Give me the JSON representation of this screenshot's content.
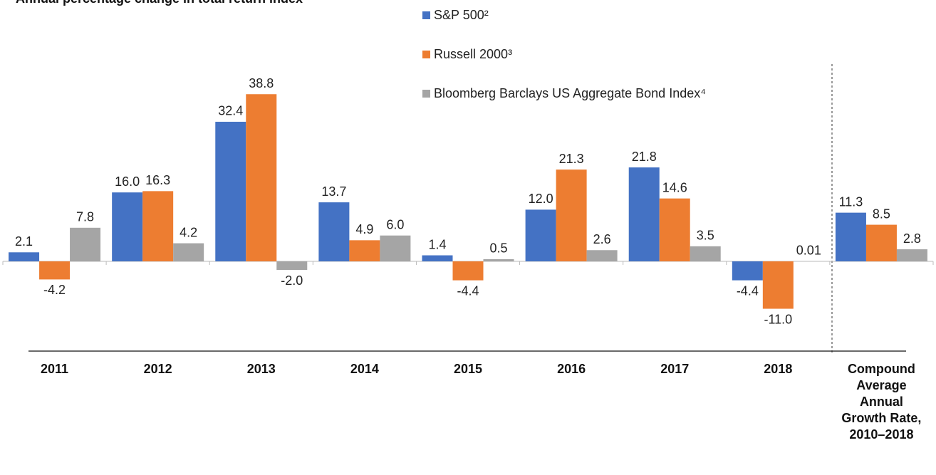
{
  "chart_data": {
    "type": "bar",
    "title": "Annual percentage change in total return index",
    "categories": [
      "2011",
      "2012",
      "2013",
      "2014",
      "2015",
      "2016",
      "2017",
      "2018",
      "Compound Average Annual Growth Rate, 2010–2018"
    ],
    "series": [
      {
        "name": "S&P 500²",
        "color": "#4472c4",
        "values": [
          2.1,
          16.0,
          32.4,
          13.7,
          1.4,
          12.0,
          21.8,
          -4.4,
          11.3
        ],
        "value_labels": [
          "2.1",
          "16.0",
          "32.4",
          "13.7",
          "1.4",
          "12.0",
          "21.8",
          "-4.4",
          "11.3"
        ]
      },
      {
        "name": "Russell 2000³",
        "color": "#ed7d31",
        "values": [
          -4.2,
          16.3,
          38.8,
          4.9,
          -4.4,
          21.3,
          14.6,
          -11.0,
          8.5
        ],
        "value_labels": [
          "-4.2",
          "16.3",
          "38.8",
          "4.9",
          "-4.4",
          "21.3",
          "14.6",
          "-11.0",
          "8.5"
        ]
      },
      {
        "name": "Bloomberg Barclays US Aggregate Bond Index⁴",
        "color": "#a5a5a5",
        "values": [
          7.8,
          4.2,
          -2.0,
          6.0,
          0.5,
          2.6,
          3.5,
          0.01,
          2.8
        ],
        "value_labels": [
          "7.8",
          "4.2",
          "-2.0",
          "6.0",
          "0.5",
          "2.6",
          "3.5",
          "0.01",
          "2.8"
        ]
      }
    ],
    "ylim": [
      -20,
      40
    ]
  }
}
